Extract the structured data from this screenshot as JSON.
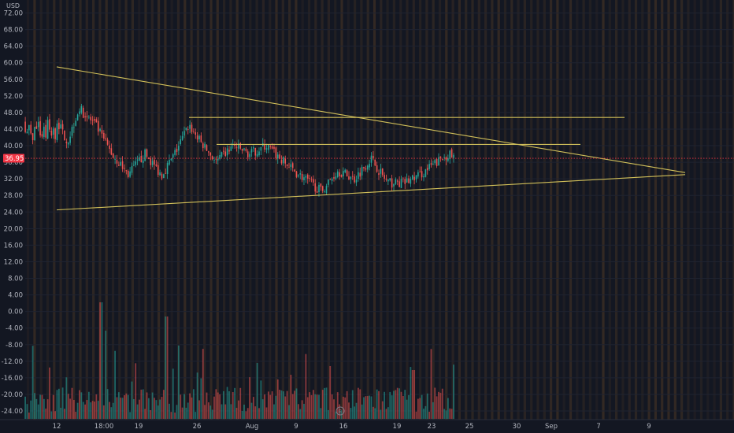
{
  "chart_data": {
    "type": "candlestick",
    "currency_label": "USD",
    "y_axis": {
      "range": [
        -26,
        74
      ],
      "tick_labels": [
        "72.00",
        "68.00",
        "64.00",
        "60.00",
        "56.00",
        "52.00",
        "48.00",
        "44.00",
        "40.00",
        "36.00",
        "32.00",
        "28.00",
        "24.00",
        "20.00",
        "16.00",
        "12.00",
        "8.00",
        "4.00",
        "0.00",
        "-4.00",
        "-8.00",
        "-12.00",
        "-16.00",
        "-20.00",
        "-24.00"
      ],
      "tick_values": [
        72,
        68,
        64,
        60,
        56,
        52,
        48,
        44,
        40,
        36,
        32,
        28,
        24,
        20,
        16,
        12,
        8,
        4,
        0,
        -4,
        -8,
        -12,
        -16,
        -20,
        -24
      ]
    },
    "x_axis": {
      "tick_labels": [
        "12",
        "18:00",
        "19",
        "26",
        "Aug",
        "9",
        "16",
        "19",
        "23",
        "25",
        "30",
        "Sep",
        "7",
        "9"
      ],
      "tick_positions": [
        0.0,
        0.0857,
        0.1486,
        0.2543,
        0.3543,
        0.4343,
        0.52,
        0.6171,
        0.68,
        0.7486,
        0.8343,
        0.8971,
        0.9829,
        1.0743
      ]
    },
    "current_price": {
      "label": "36.95",
      "value": 36.95,
      "color": "#f23645"
    },
    "price_series": {
      "points": [
        [
          0,
          46
        ],
        [
          0.02,
          41
        ],
        [
          0.04,
          49
        ],
        [
          0.07,
          45
        ],
        [
          0.1,
          38
        ],
        [
          0.13,
          33
        ],
        [
          0.16,
          38
        ],
        [
          0.19,
          33
        ],
        [
          0.21,
          37
        ],
        [
          0.24,
          45
        ],
        [
          0.26,
          41
        ],
        [
          0.29,
          36
        ],
        [
          0.32,
          40
        ],
        [
          0.35,
          38
        ],
        [
          0.38,
          40
        ],
        [
          0.42,
          35
        ],
        [
          0.45,
          32
        ],
        [
          0.48,
          29
        ],
        [
          0.51,
          34
        ],
        [
          0.54,
          32
        ],
        [
          0.57,
          37
        ],
        [
          0.6,
          31
        ],
        [
          0.63,
          31
        ],
        [
          0.66,
          33
        ],
        [
          0.69,
          36
        ],
        [
          0.71,
          38
        ],
        [
          0.72,
          37
        ]
      ],
      "up_color": "#26a69a",
      "down_color": "#ef5350"
    },
    "trendlines": [
      {
        "from": [
          0.0,
          59.0
        ],
        "to": [
          1.14,
          33.5
        ]
      },
      {
        "from": [
          0.0,
          24.5
        ],
        "to": [
          1.14,
          33.0
        ]
      },
      {
        "from": [
          0.24,
          46.8
        ],
        "to": [
          1.03,
          46.8
        ]
      },
      {
        "from": [
          0.29,
          40.3
        ],
        "to": [
          0.95,
          40.3
        ]
      }
    ],
    "trendline_color": "#d1c05a",
    "volume": {
      "up_color": "#26a69a",
      "down_color": "#ef5350"
    },
    "background_stripe_color": "#e28b2e",
    "grid": true
  }
}
